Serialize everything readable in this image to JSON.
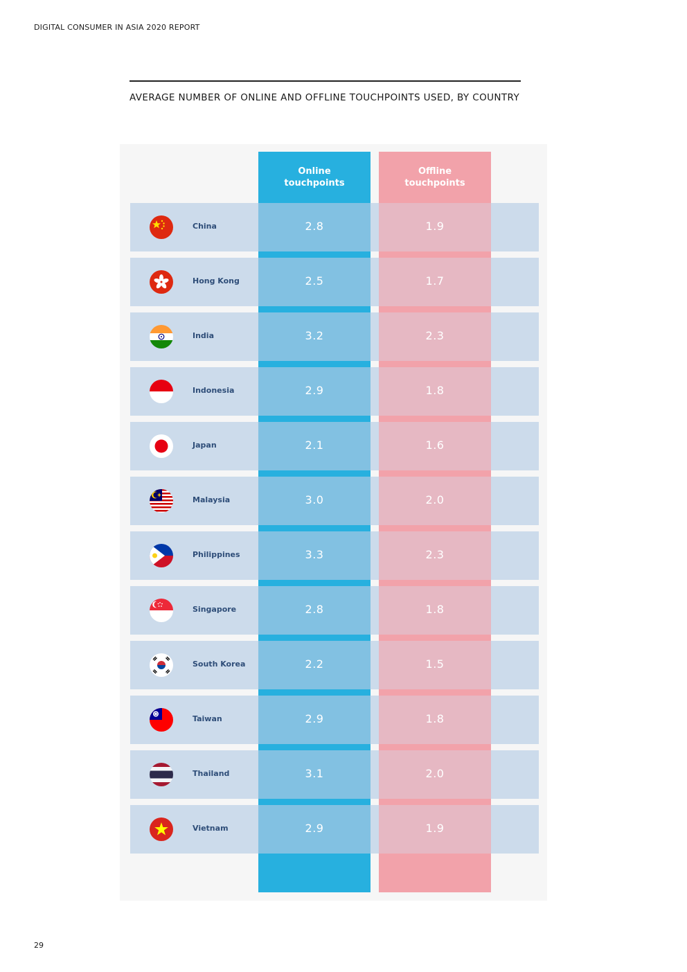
{
  "header": "DIGITAL CONSUMER IN ASIA 2020 REPORT",
  "page_number": "29",
  "chart_data": {
    "type": "table",
    "title": "AVERAGE NUMBER OF ONLINE AND OFFLINE TOUCHPOINTS USED, BY COUNTRY",
    "columns": [
      {
        "name": "Online touchpoints",
        "line1": "Online",
        "line2": "touchpoints",
        "color": "#27b0df"
      },
      {
        "name": "Offline touchpoints",
        "line1": "Offline",
        "line2": "touchpoints",
        "color": "#f2a2aa"
      }
    ],
    "rows": [
      {
        "country": "China",
        "flag": "china-flag-icon",
        "online": "2.8",
        "offline": "1.9"
      },
      {
        "country": "Hong Kong",
        "flag": "hong-kong-flag-icon",
        "online": "2.5",
        "offline": "1.7"
      },
      {
        "country": "India",
        "flag": "india-flag-icon",
        "online": "3.2",
        "offline": "2.3"
      },
      {
        "country": "Indonesia",
        "flag": "indonesia-flag-icon",
        "online": "2.9",
        "offline": "1.8"
      },
      {
        "country": "Japan",
        "flag": "japan-flag-icon",
        "online": "2.1",
        "offline": "1.6"
      },
      {
        "country": "Malaysia",
        "flag": "malaysia-flag-icon",
        "online": "3.0",
        "offline": "2.0"
      },
      {
        "country": "Philippines",
        "flag": "philippines-flag-icon",
        "online": "3.3",
        "offline": "2.3"
      },
      {
        "country": "Singapore",
        "flag": "singapore-flag-icon",
        "online": "2.8",
        "offline": "1.8"
      },
      {
        "country": "South Korea",
        "flag": "south-korea-flag-icon",
        "online": "2.2",
        "offline": "1.5"
      },
      {
        "country": "Taiwan",
        "flag": "taiwan-flag-icon",
        "online": "2.9",
        "offline": "1.8"
      },
      {
        "country": "Thailand",
        "flag": "thailand-flag-icon",
        "online": "3.1",
        "offline": "2.0"
      },
      {
        "country": "Vietnam",
        "flag": "vietnam-flag-icon",
        "online": "2.9",
        "offline": "1.9"
      }
    ]
  }
}
